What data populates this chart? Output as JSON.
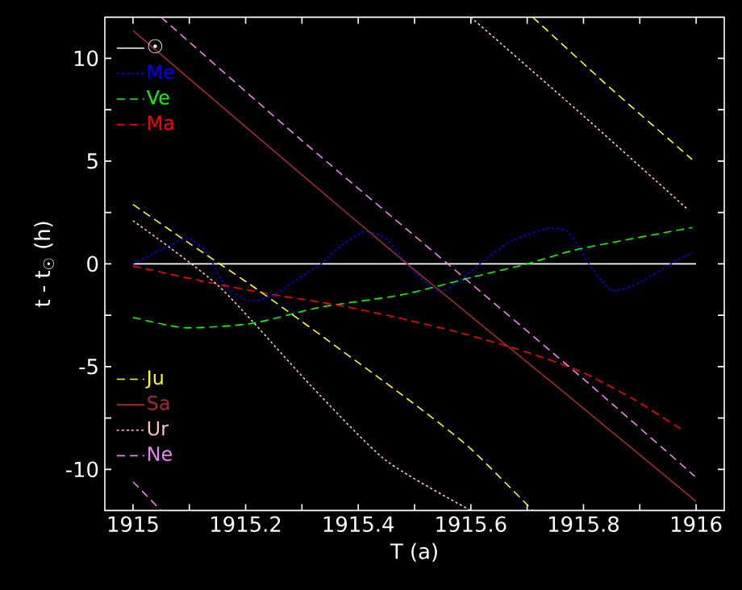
{
  "chart_data": {
    "type": "line",
    "xlabel": "T (a)",
    "ylabel": "t - t$_{☉}$ (h)",
    "xlim": [
      1914.95,
      1916.05
    ],
    "ylim": [
      -12,
      12
    ],
    "xticks": [
      1915,
      {
        "value": 1915.1,
        "label": null
      },
      1915.2,
      {
        "value": 1915.3,
        "label": null
      },
      1915.4,
      {
        "value": 1915.5,
        "label": null
      },
      1915.6,
      {
        "value": 1915.7,
        "label": null
      },
      1915.8,
      {
        "value": 1915.9,
        "label": null
      },
      1916
    ],
    "yticks": [
      -10,
      {
        "value": -7.5,
        "label": null
      },
      -5,
      {
        "value": -2.5,
        "label": null
      },
      0,
      {
        "value": 2.5,
        "label": null
      },
      5,
      {
        "value": 7.5,
        "label": null
      },
      10
    ],
    "legend": "left",
    "series": [
      {
        "name": "☉",
        "color": "#ffffff",
        "line_style": "solid",
        "x": [
          1915,
          1916
        ],
        "values": [
          0,
          0
        ]
      },
      {
        "name": "Me",
        "color": "#0000ff",
        "line_style": "dotted",
        "x": [
          1915,
          1915.05,
          1915.096,
          1915.13,
          1915.16,
          1915.205,
          1915.25,
          1915.3,
          1915.334,
          1915.37,
          1915.411,
          1915.45,
          1915.5,
          1915.544,
          1915.58,
          1915.616,
          1915.67,
          1915.735,
          1915.77,
          1915.79,
          1915.81,
          1915.85,
          1915.9,
          1915.955,
          1915.993
        ],
        "values": [
          0,
          0.7,
          1.25,
          0.6,
          -0.9,
          -1.8,
          -1.5,
          -0.6,
          0,
          0.9,
          1.56,
          1.2,
          -0.4,
          -1.36,
          -0.8,
          0,
          1.1,
          1.72,
          1.6,
          0.9,
          0,
          -1.28,
          -0.9,
          0,
          0.55
        ]
      },
      {
        "name": "Ve",
        "color": "#00ff00",
        "line_style": "dashed",
        "x": [
          1915,
          1915.091,
          1915.21,
          1915.334,
          1915.478,
          1915.602,
          1915.7,
          1915.793,
          1915.993
        ],
        "values": [
          -2.6,
          -3.1,
          -2.9,
          -2.1,
          -1.5,
          -0.65,
          0,
          0.73,
          1.77
        ]
      },
      {
        "name": "Ma",
        "color": "#ff0000",
        "line_style": "dashed",
        "x": [
          1915,
          1915.124,
          1915.248,
          1915.363,
          1915.468,
          1915.583,
          1915.697,
          1915.793,
          1915.888,
          1915.974
        ],
        "values": [
          -0.1,
          -0.84,
          -1.49,
          -2.0,
          -2.6,
          -3.36,
          -4.27,
          -5.21,
          -6.56,
          -8.05
        ]
      },
      {
        "name": "Ju",
        "color": "#ffff00",
        "line_style": "dashed",
        "x": [
          1915,
          1915.1,
          1915.22,
          1915.35,
          1915.506,
          1915.6,
          1915.71
        ],
        "values": [
          2.89,
          1.0,
          -1.23,
          -3.8,
          -6.95,
          -9.0,
          -12
        ]
      },
      {
        "name": "Sa",
        "color": "#a52a2a",
        "line_style": "solid",
        "x": [
          1915,
          1915.25,
          1915.487,
          1915.75,
          1916
        ],
        "values": [
          11.35,
          5.5,
          0,
          -5.9,
          -11.56
        ]
      },
      {
        "name": "Ur",
        "color": "#ffc0cb",
        "line_style": "dotted",
        "x": [
          1915,
          1915.153,
          1915.315,
          1915.449,
          1915.6
        ],
        "values": [
          2.1,
          -1.1,
          -5.9,
          -9.56,
          -12
        ]
      },
      {
        "name": "Ne",
        "color": "#ee82ee",
        "line_style": "dashed",
        "x": [
          1915.05,
          1915.3,
          1915.559,
          1915.8,
          1915.998
        ],
        "values": [
          12,
          6.0,
          0,
          -5.6,
          -10.34
        ]
      },
      {
        "color": "#ffff00",
        "line_style": "dashed",
        "x": [
          1915.71,
          1915.85,
          1915.993
        ],
        "values": [
          12,
          8.5,
          5.08
        ]
      },
      {
        "color": "#ffc0cb",
        "line_style": "dotted",
        "x": [
          1915.6,
          1915.8,
          1915.984
        ],
        "values": [
          12,
          7.2,
          2.68
        ]
      },
      {
        "color": "#ee82ee",
        "line_style": "dashed",
        "x": [
          1915,
          1915.05
        ],
        "values": [
          -10.6,
          -12
        ]
      }
    ]
  }
}
